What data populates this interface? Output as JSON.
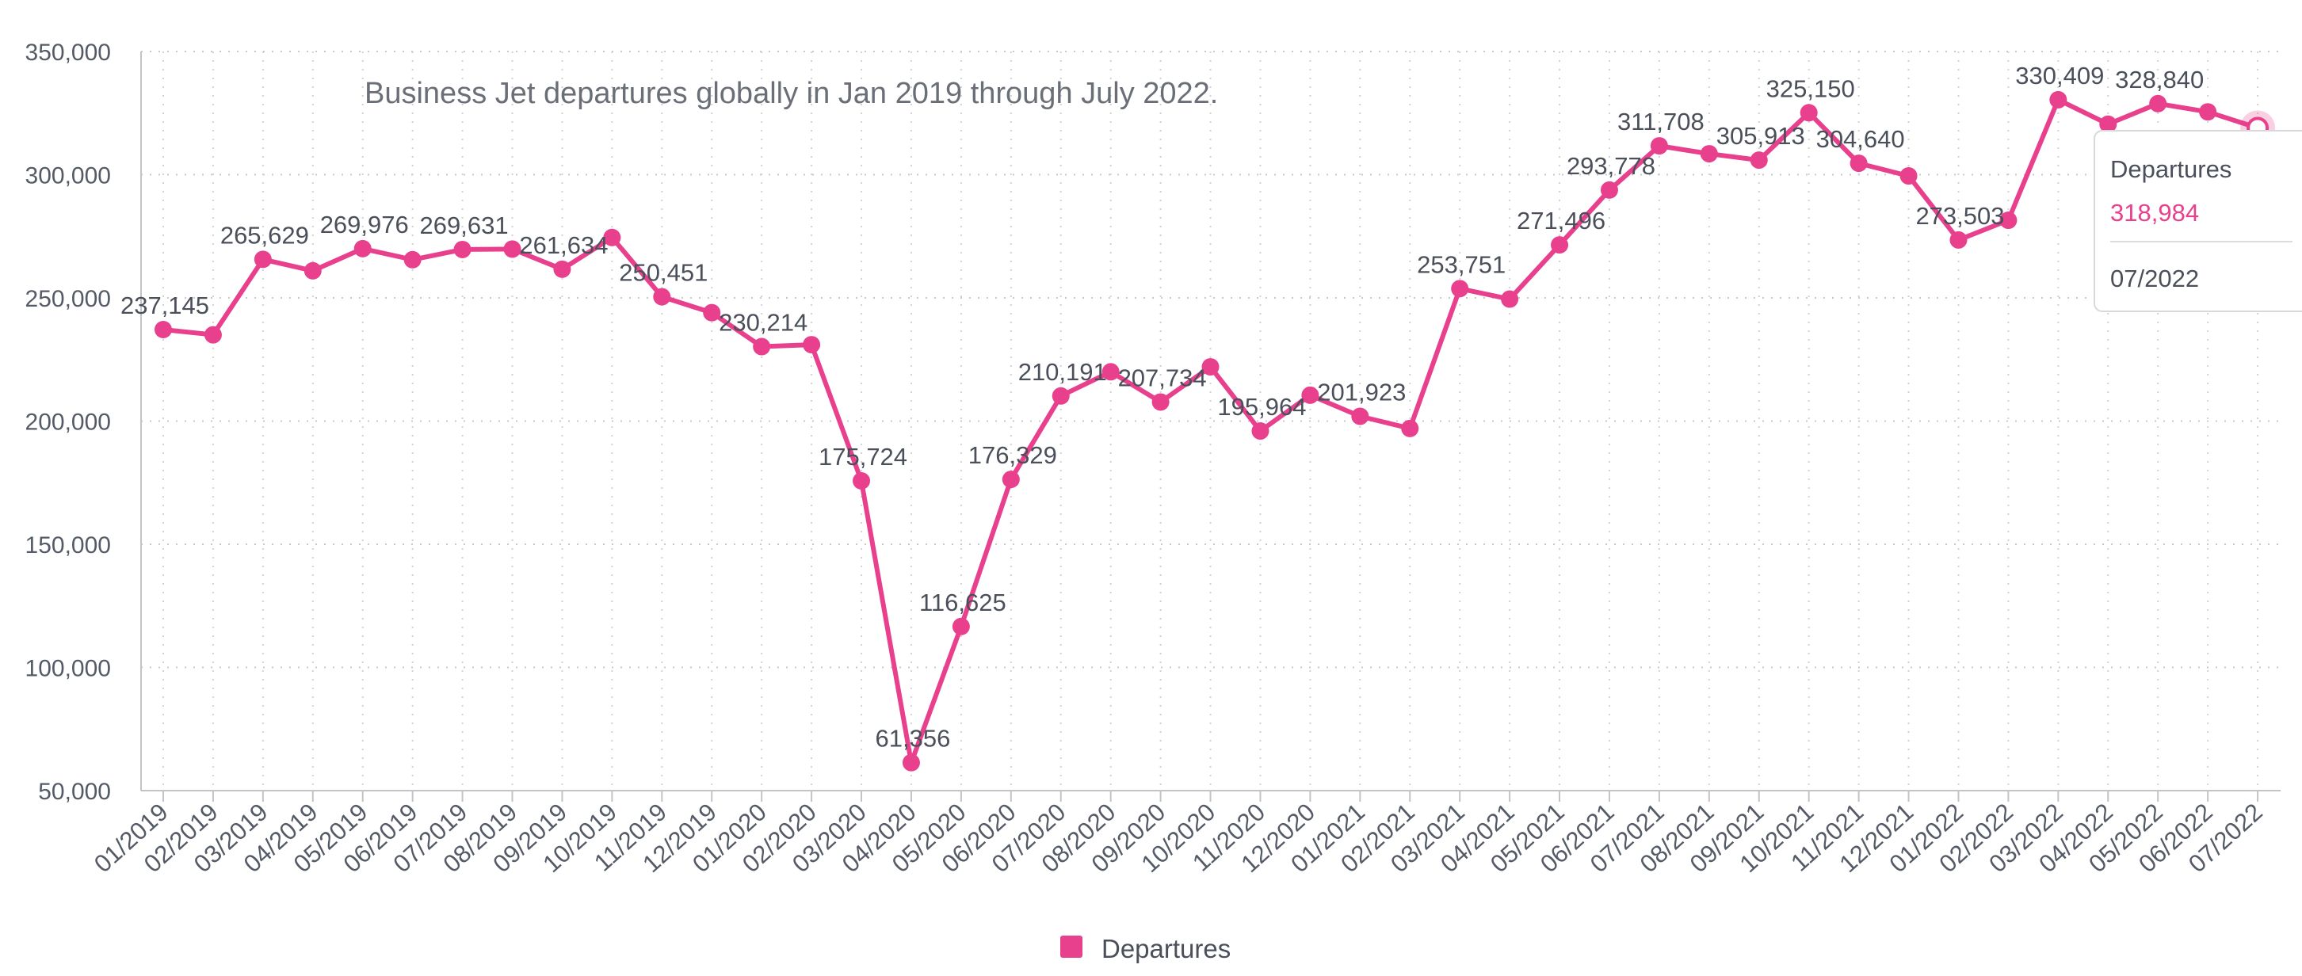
{
  "chart_data": {
    "type": "line",
    "title": "Business Jet departures globally in Jan 2019 through July 2022.",
    "xlabel": "",
    "ylabel": "",
    "ylim": [
      50000,
      350000
    ],
    "y_ticks": [
      "50,000",
      "100,000",
      "150,000",
      "200,000",
      "250,000",
      "300,000",
      "350,000"
    ],
    "y_tick_values": [
      50000,
      100000,
      150000,
      200000,
      250000,
      300000,
      350000
    ],
    "grid": true,
    "legend_position": "bottom",
    "line_color": "#e8408d",
    "categories": [
      "01/2019",
      "02/2019",
      "03/2019",
      "04/2019",
      "05/2019",
      "06/2019",
      "07/2019",
      "08/2019",
      "09/2019",
      "10/2019",
      "11/2019",
      "12/2019",
      "01/2020",
      "02/2020",
      "03/2020",
      "04/2020",
      "05/2020",
      "06/2020",
      "07/2020",
      "08/2020",
      "09/2020",
      "10/2020",
      "11/2020",
      "12/2020",
      "01/2021",
      "02/2021",
      "03/2021",
      "04/2021",
      "05/2021",
      "06/2021",
      "07/2021",
      "08/2021",
      "09/2021",
      "10/2021",
      "11/2021",
      "12/2021",
      "01/2022",
      "02/2022",
      "03/2022",
      "04/2022",
      "05/2022",
      "06/2022",
      "07/2022"
    ],
    "series": [
      {
        "name": "Departures",
        "values": [
          237145,
          235000,
          265629,
          261000,
          269976,
          265500,
          269631,
          269800,
          261634,
          274500,
          250451,
          244000,
          230214,
          231000,
          175724,
          61356,
          116625,
          176329,
          210191,
          220000,
          207734,
          222000,
          195964,
          210500,
          201923,
          197000,
          253751,
          249500,
          271496,
          293778,
          311708,
          308500,
          305913,
          325150,
          304640,
          299500,
          273503,
          281500,
          330409,
          320500,
          328840,
          325500,
          318984
        ]
      }
    ],
    "data_labels": [
      {
        "index": 0,
        "text": "237,145"
      },
      {
        "index": 2,
        "text": "265,629"
      },
      {
        "index": 4,
        "text": "269,976"
      },
      {
        "index": 6,
        "text": "269,631"
      },
      {
        "index": 8,
        "text": "261,634"
      },
      {
        "index": 10,
        "text": "250,451"
      },
      {
        "index": 12,
        "text": "230,214"
      },
      {
        "index": 14,
        "text": "175,724"
      },
      {
        "index": 15,
        "text": "61,356"
      },
      {
        "index": 16,
        "text": "116,625"
      },
      {
        "index": 17,
        "text": "176,329"
      },
      {
        "index": 18,
        "text": "210,191"
      },
      {
        "index": 20,
        "text": "207,734"
      },
      {
        "index": 22,
        "text": "195,964"
      },
      {
        "index": 24,
        "text": "201,923"
      },
      {
        "index": 26,
        "text": "253,751"
      },
      {
        "index": 28,
        "text": "271,496"
      },
      {
        "index": 29,
        "text": "293,778"
      },
      {
        "index": 30,
        "text": "311,708"
      },
      {
        "index": 32,
        "text": "305,913"
      },
      {
        "index": 33,
        "text": "325,150"
      },
      {
        "index": 34,
        "text": "304,640"
      },
      {
        "index": 36,
        "text": "273,503"
      },
      {
        "index": 38,
        "text": "330,409"
      },
      {
        "index": 40,
        "text": "328,840"
      }
    ],
    "legend": [
      {
        "label": "Departures",
        "color": "#e8408d"
      }
    ],
    "tooltip": {
      "title": "Departures",
      "value": "318,984",
      "date": "07/2022",
      "index": 42
    }
  }
}
